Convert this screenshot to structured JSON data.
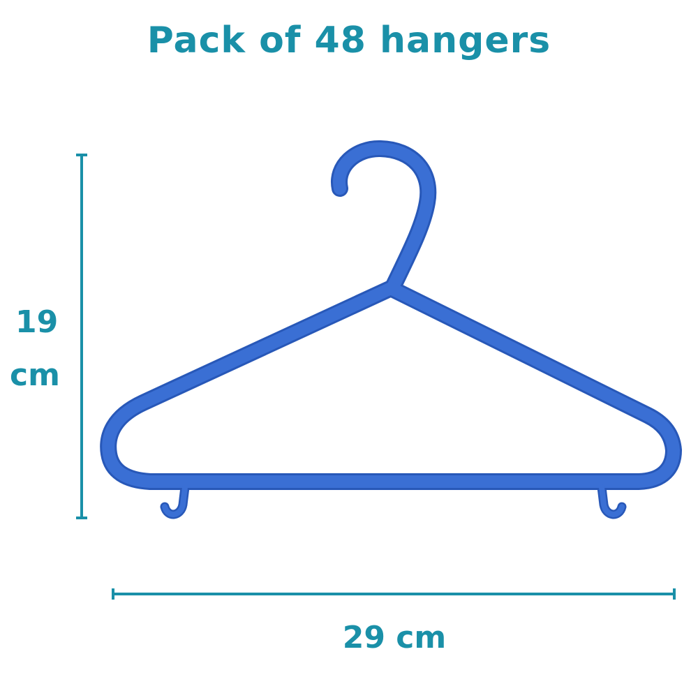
{
  "title": "Pack of 48 hangers",
  "dimensions": {
    "height_value": "19",
    "height_unit": "cm",
    "width_label": "29 cm"
  },
  "colors": {
    "accent": "#1a90a8",
    "hanger": "#3a6fd4",
    "hanger_edge": "#2858b8",
    "background": "#ffffff"
  }
}
